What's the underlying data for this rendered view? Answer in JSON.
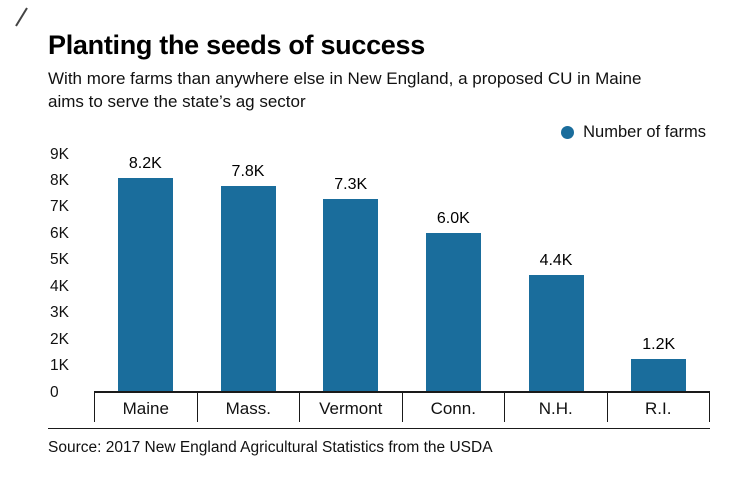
{
  "page": {
    "title": "Planting the seeds of success",
    "subtitle": "With more farms than anywhere else in New England, a proposed CU in Maine aims to serve the state’s ag sector",
    "source": "Source: 2017 New England Agricultural Statistics from the USDA"
  },
  "legend": {
    "label": "Number of farms"
  },
  "colors": {
    "bar": "#1a6d9c",
    "axis": "#1a1a1a"
  },
  "chart_data": {
    "type": "bar",
    "title": "Planting the seeds of success",
    "subtitle": "With more farms than anywhere else in New England, a proposed CU in Maine aims to serve the state’s ag sector",
    "categories": [
      "Maine",
      "Mass.",
      "Vermont",
      "Conn.",
      "N.H.",
      "R.I."
    ],
    "values": [
      8200,
      7800,
      7300,
      6000,
      4400,
      1200
    ],
    "value_labels": [
      "8.2K",
      "7.8K",
      "7.3K",
      "6.0K",
      "4.4K",
      "1.2K"
    ],
    "series_name": "Number of farms",
    "xlabel": "",
    "ylabel": "",
    "ylim": [
      0,
      9000
    ],
    "ytick_labels": [
      "9K",
      "8K",
      "7K",
      "6K",
      "5K",
      "4K",
      "3K",
      "2K",
      "1K",
      "0"
    ],
    "grid": false,
    "legend_position": "top-right",
    "source": "Source: 2017 New England Agricultural Statistics from the USDA"
  }
}
